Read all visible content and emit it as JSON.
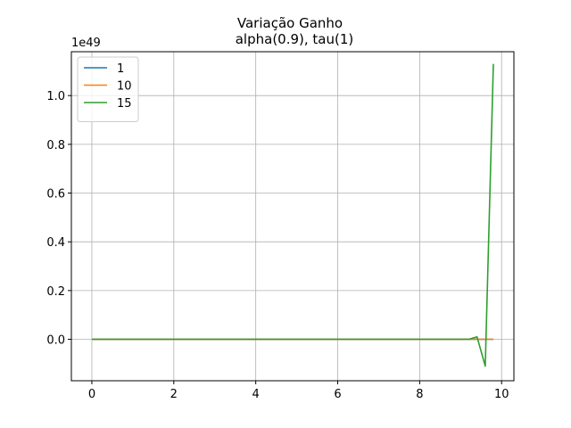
{
  "chart_data": {
    "type": "line",
    "title": "Variação Ganho",
    "subtitle": "alpha(0.9), tau(1)",
    "xlabel": "",
    "ylabel": "",
    "y_offset_label": "1e49",
    "xlim": [
      -0.5,
      10.3
    ],
    "ylim": [
      -0.17,
      1.18
    ],
    "x_ticks": [
      0,
      2,
      4,
      6,
      8,
      10
    ],
    "y_ticks": [
      0.0,
      0.2,
      0.4,
      0.6,
      0.8,
      1.0
    ],
    "x_tick_labels": [
      "0",
      "2",
      "4",
      "6",
      "8",
      "10"
    ],
    "y_tick_labels": [
      "0.0",
      "0.2",
      "0.4",
      "0.6",
      "0.8",
      "1.0"
    ],
    "grid": true,
    "legend_position": "top-left",
    "series": [
      {
        "name": "1",
        "color": "#1f77b4",
        "x": [
          0,
          9.2,
          9.4,
          9.6,
          9.8
        ],
        "y": [
          0,
          0,
          0,
          0,
          0
        ]
      },
      {
        "name": "10",
        "color": "#ff7f0e",
        "x": [
          0,
          9.2,
          9.4,
          9.6,
          9.8
        ],
        "y": [
          0,
          0,
          0,
          0,
          0
        ]
      },
      {
        "name": "15",
        "color": "#2ca02c",
        "x": [
          0,
          9.2,
          9.4,
          9.6,
          9.8
        ],
        "y": [
          0,
          0,
          0.01,
          -0.11,
          1.13
        ]
      }
    ]
  }
}
